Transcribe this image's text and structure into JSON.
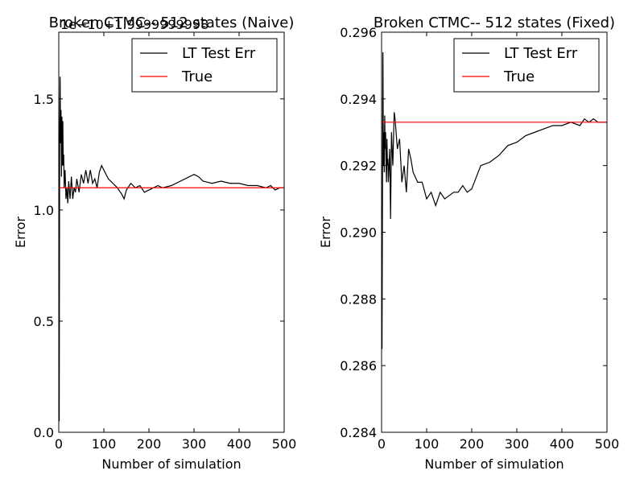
{
  "chart_data": [
    {
      "type": "line",
      "title": "Broken CTMC-- 512 states (Naive)",
      "offset_text": "1e−10+1.9999999998",
      "xlabel": "Number of simulation",
      "ylabel": "Error",
      "xlim": [
        0,
        500
      ],
      "ylim": [
        0,
        1.8
      ],
      "xticks": [
        0,
        100,
        200,
        300,
        400,
        500
      ],
      "xtick_labels": [
        "0",
        "100",
        "200",
        "300",
        "400",
        "500"
      ],
      "yticks": [
        0.0,
        0.5,
        1.0,
        1.5
      ],
      "ytick_labels": [
        "0.0",
        "0.5",
        "1.0",
        "1.5"
      ],
      "grid": false,
      "legend": "top-right",
      "series": [
        {
          "name": "LT Test Err",
          "color": "#000000",
          "x": [
            1,
            2,
            3,
            4,
            5,
            6,
            7,
            8,
            9,
            10,
            11,
            12,
            14,
            16,
            18,
            20,
            22,
            25,
            28,
            31,
            34,
            37,
            40,
            45,
            50,
            55,
            60,
            65,
            70,
            75,
            80,
            85,
            90,
            95,
            100,
            110,
            120,
            130,
            140,
            145,
            150,
            160,
            170,
            180,
            190,
            200,
            210,
            220,
            230,
            250,
            270,
            290,
            300,
            310,
            320,
            340,
            360,
            380,
            400,
            420,
            440,
            460,
            470,
            480,
            490,
            500
          ],
          "y": [
            0.05,
            1.35,
            1.6,
            1.3,
            1.45,
            1.15,
            1.42,
            1.2,
            1.4,
            1.2,
            1.25,
            1.1,
            1.18,
            1.05,
            1.1,
            1.03,
            1.13,
            1.05,
            1.15,
            1.05,
            1.1,
            1.08,
            1.14,
            1.08,
            1.16,
            1.12,
            1.18,
            1.12,
            1.18,
            1.12,
            1.14,
            1.1,
            1.17,
            1.2,
            1.18,
            1.14,
            1.12,
            1.1,
            1.07,
            1.05,
            1.09,
            1.12,
            1.1,
            1.11,
            1.08,
            1.09,
            1.1,
            1.11,
            1.1,
            1.11,
            1.13,
            1.15,
            1.16,
            1.15,
            1.13,
            1.12,
            1.13,
            1.12,
            1.12,
            1.11,
            1.11,
            1.1,
            1.11,
            1.09,
            1.1,
            1.1
          ]
        },
        {
          "name": "True",
          "color": "#ff0000",
          "x": [
            0,
            500
          ],
          "y": [
            1.1,
            1.1
          ]
        }
      ]
    },
    {
      "type": "line",
      "title": "Broken CTMC-- 512 states (Fixed)",
      "xlabel": "Number of simulation",
      "ylabel": "Error",
      "xlim": [
        0,
        500
      ],
      "ylim": [
        0.284,
        0.296
      ],
      "xticks": [
        0,
        100,
        200,
        300,
        400,
        500
      ],
      "xtick_labels": [
        "0",
        "100",
        "200",
        "300",
        "400",
        "500"
      ],
      "yticks": [
        0.284,
        0.286,
        0.288,
        0.29,
        0.292,
        0.294,
        0.296
      ],
      "ytick_labels": [
        "0.284",
        "0.286",
        "0.288",
        "0.290",
        "0.292",
        "0.294",
        "0.296"
      ],
      "grid": false,
      "legend": "top-right",
      "series": [
        {
          "name": "LT Test Err",
          "color": "#000000",
          "x": [
            1,
            2,
            3,
            4,
            5,
            6,
            7,
            8,
            9,
            10,
            11,
            12,
            13,
            14,
            15,
            16,
            18,
            20,
            22,
            25,
            28,
            30,
            35,
            40,
            45,
            50,
            55,
            60,
            65,
            70,
            80,
            90,
            100,
            110,
            120,
            130,
            140,
            150,
            160,
            170,
            180,
            190,
            200,
            220,
            240,
            260,
            280,
            300,
            320,
            340,
            360,
            380,
            400,
            420,
            440,
            450,
            460,
            470,
            480,
            490,
            500
          ],
          "y": [
            0.2865,
            0.291,
            0.2954,
            0.292,
            0.293,
            0.2918,
            0.2935,
            0.2925,
            0.293,
            0.292,
            0.2915,
            0.2928,
            0.292,
            0.2922,
            0.2915,
            0.2918,
            0.2925,
            0.2904,
            0.293,
            0.292,
            0.2936,
            0.2934,
            0.2925,
            0.2928,
            0.2915,
            0.292,
            0.2912,
            0.2925,
            0.2922,
            0.2918,
            0.2915,
            0.2915,
            0.291,
            0.2912,
            0.2908,
            0.2912,
            0.291,
            0.2911,
            0.2912,
            0.2912,
            0.2914,
            0.2912,
            0.2913,
            0.292,
            0.2921,
            0.2923,
            0.2926,
            0.2927,
            0.2929,
            0.293,
            0.2931,
            0.2932,
            0.2932,
            0.2933,
            0.2932,
            0.2934,
            0.2933,
            0.2934,
            0.2933,
            0.2933,
            0.2933
          ]
        },
        {
          "name": "True",
          "color": "#ff0000",
          "x": [
            0,
            500
          ],
          "y": [
            0.2933,
            0.2933
          ]
        }
      ]
    }
  ]
}
